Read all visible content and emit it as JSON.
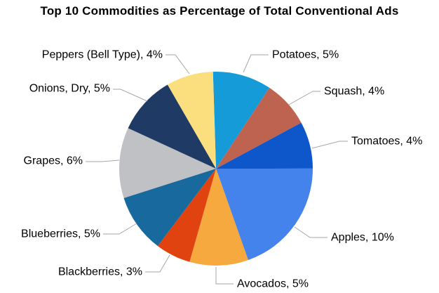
{
  "title": "Top 10 Commodities as Percentage of Total Conventional Ads",
  "chart_data": {
    "type": "pie",
    "title": "Top 10 Commodities as Percentage of Total Conventional Ads",
    "values_unit": "% of total conventional ads",
    "start_angle_deg": -1.8,
    "direction": "clockwise",
    "labels_position": "outside with leader lines",
    "legend": "none",
    "background": "#FFFFFF",
    "leader_line_color": "#A6A6A6",
    "label_text_color": "#000000",
    "slices": [
      {
        "label": "Potatoes",
        "value": 5,
        "display": "Potatoes, 5%",
        "color": "#169BD9"
      },
      {
        "label": "Squash",
        "value": 4,
        "display": "Squash, 4%",
        "color": "#BE6350"
      },
      {
        "label": "Tomatoes",
        "value": 4,
        "display": "Tomatoes, 4%",
        "color": "#0D57CB"
      },
      {
        "label": "Apples",
        "value": 10,
        "display": "Apples, 10%",
        "color": "#4483EC"
      },
      {
        "label": "Avocados",
        "value": 5,
        "display": "Avocados, 5%",
        "color": "#F6A93F"
      },
      {
        "label": "Blackberries",
        "value": 3,
        "display": "Blackberries, 3%",
        "color": "#E0430F"
      },
      {
        "label": "Blueberries",
        "value": 5,
        "display": "Blueberries, 5%",
        "color": "#17699E"
      },
      {
        "label": "Grapes",
        "value": 6,
        "display": "Grapes, 6%",
        "color": "#C0C1C4"
      },
      {
        "label": "Onions, Dry",
        "value": 5,
        "display": "Onions, Dry, 5%",
        "color": "#1F3A64"
      },
      {
        "label": "Peppers (Bell Type)",
        "value": 4,
        "display": "Peppers (Bell Type), 4%",
        "color": "#FBDE7E"
      }
    ]
  }
}
